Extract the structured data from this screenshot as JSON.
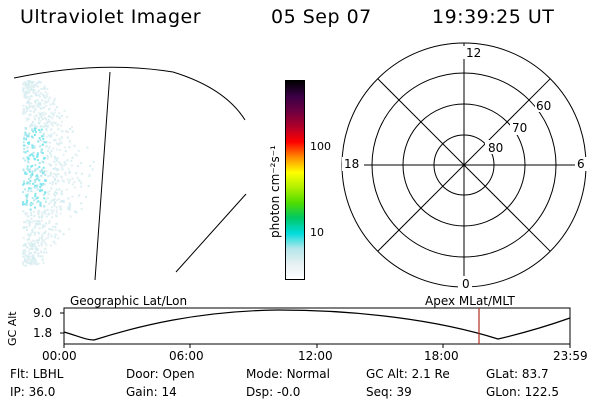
{
  "header": {
    "instrument": "Ultraviolet Imager",
    "date": "05 Sep 07",
    "time": "19:39:25 UT"
  },
  "colorbar": {
    "unit_label": "photon cm⁻²s⁻¹",
    "ticks": [
      "100",
      "10"
    ],
    "colors": [
      "#000000",
      "#3a0046",
      "#6d0040",
      "#b0002a",
      "#ff0000",
      "#ff8c00",
      "#ffff00",
      "#b0f000",
      "#50dc00",
      "#00c864",
      "#00dcdc",
      "#b4e6ea",
      "#e6f0f2",
      "#ffffff"
    ]
  },
  "polar_plot": {
    "mlt_labels": [
      "12",
      "6",
      "0",
      "18"
    ],
    "lat_labels": [
      "60",
      "70",
      "80"
    ]
  },
  "bottom_panel": {
    "left_title": "Geographic Lat/Lon",
    "right_title": "Apex MLat/MLT",
    "ylabel": "GC Alt",
    "y_ticks": [
      "9.0",
      "1.8"
    ],
    "x_ticks": [
      "00:00",
      "06:00",
      "12:00",
      "18:00",
      "23:59"
    ],
    "marker_color": "#b03020"
  },
  "footer": {
    "row1": [
      {
        "label": "Flt:",
        "value": "LBHL"
      },
      {
        "label": "Door:",
        "value": "Open"
      },
      {
        "label": "Mode:",
        "value": "Normal"
      },
      {
        "label": "GC Alt:",
        "value": "2.1 Re"
      },
      {
        "label": "GLat:",
        "value": "83.7"
      }
    ],
    "row2": [
      {
        "label": "IP:",
        "value": "36.0"
      },
      {
        "label": "Gain:",
        "value": "14"
      },
      {
        "label": "Dsp:",
        "value": "-0.0"
      },
      {
        "label": "Seq:",
        "value": "39"
      },
      {
        "label": "GLon:",
        "value": "122.5"
      }
    ]
  }
}
